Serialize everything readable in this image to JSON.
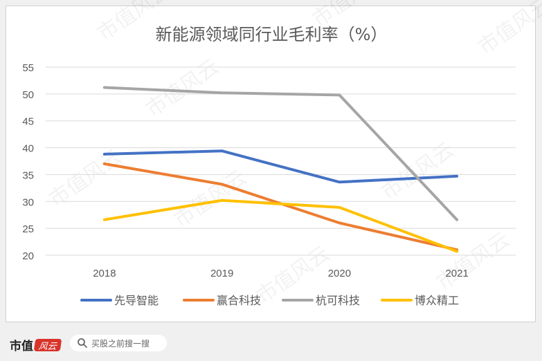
{
  "chart_data": {
    "type": "line",
    "title": "新能源领域同行业毛利率（%）",
    "categories": [
      "2018",
      "2019",
      "2020",
      "2021"
    ],
    "ylim": [
      20,
      55
    ],
    "yticks": [
      20,
      25,
      30,
      35,
      40,
      45,
      50,
      55
    ],
    "grid": true,
    "legend_position": "bottom",
    "series": [
      {
        "name": "先导智能",
        "color": "#4472C4",
        "values": [
          38.8,
          39.4,
          33.6,
          34.7
        ]
      },
      {
        "name": "赢合科技",
        "color": "#ED7D31",
        "values": [
          37.0,
          33.2,
          26.0,
          21.0
        ]
      },
      {
        "name": "杭可科技",
        "color": "#A5A5A5",
        "values": [
          51.2,
          50.2,
          49.8,
          26.6
        ]
      },
      {
        "name": "博众精工",
        "color": "#FFC000",
        "values": [
          26.6,
          30.2,
          28.9,
          20.7
        ]
      }
    ]
  },
  "watermark": "市值风云",
  "footer": {
    "brand": "市值",
    "brand_mark": "风云",
    "search_placeholder": "买股之前搜一搜"
  }
}
